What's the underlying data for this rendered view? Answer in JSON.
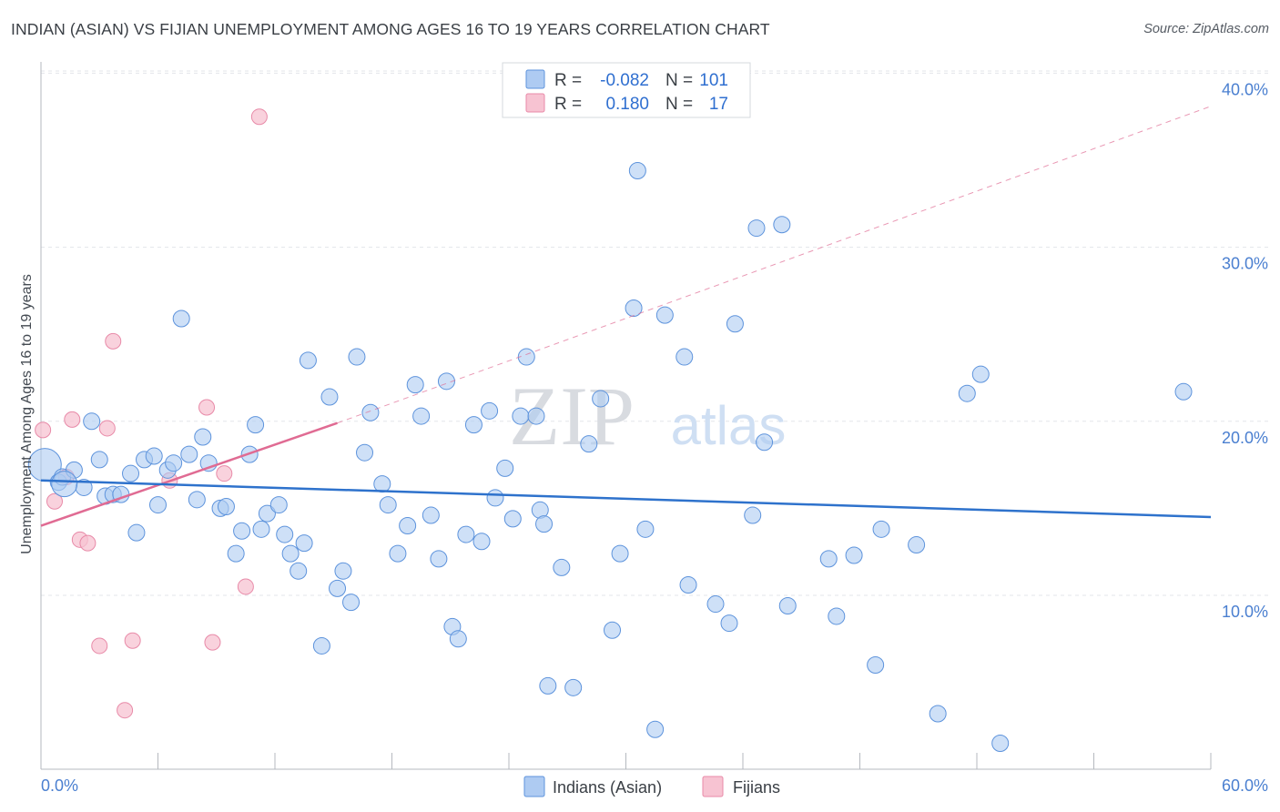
{
  "title": "INDIAN (ASIAN) VS FIJIAN UNEMPLOYMENT AMONG AGES 16 TO 19 YEARS CORRELATION CHART",
  "source": "Source: ZipAtlas.com",
  "watermark": {
    "zip": "ZIP",
    "atlas": "atlas"
  },
  "legend": {
    "rows": [
      {
        "r_label": "R =",
        "r_value": "-0.082",
        "n_label": "N =",
        "n_value": "101"
      },
      {
        "r_label": "R =",
        "r_value": "0.180",
        "n_label": "N =",
        "n_value": "17"
      }
    ]
  },
  "bottom_legend": [
    "Indians (Asian)",
    "Fijians"
  ],
  "colors": {
    "indian_fill": "#aecbf2",
    "indian_stroke": "#5d93dc",
    "indian_line": "#2e72cc",
    "fijian_fill": "#f7c3d2",
    "fijian_stroke": "#e88aa8",
    "fijian_line": "#e06b93",
    "axis_text": "#4a7fd0",
    "grid": "#e3e5ea"
  },
  "chart_data": {
    "type": "scatter",
    "title": "INDIAN (ASIAN) VS FIJIAN UNEMPLOYMENT AMONG AGES 16 TO 19 YEARS CORRELATION CHART",
    "xlabel": "",
    "ylabel": "Unemployment Among Ages 16 to 19 years",
    "xlim": [
      0,
      60
    ],
    "ylim": [
      0,
      41
    ],
    "x_tick_labels": [
      "0.0%",
      "60.0%"
    ],
    "y_ticks": [
      10,
      20,
      30,
      40
    ],
    "y_tick_labels": [
      "10.0%",
      "20.0%",
      "30.0%",
      "40.0%"
    ],
    "grid": true,
    "legend_position": "top-center",
    "series": [
      {
        "name": "Indians (Asian)",
        "points": [
          [
            0.2,
            17.5
          ],
          [
            0.9,
            16.5
          ],
          [
            1.1,
            16.8
          ],
          [
            1.7,
            17.2
          ],
          [
            2.2,
            16.2
          ],
          [
            2.6,
            20.0
          ],
          [
            3.0,
            17.8
          ],
          [
            3.3,
            15.7
          ],
          [
            3.7,
            15.8
          ],
          [
            4.1,
            15.8
          ],
          [
            4.6,
            17.0
          ],
          [
            4.9,
            13.6
          ],
          [
            5.3,
            17.8
          ],
          [
            5.8,
            18.0
          ],
          [
            6.0,
            15.2
          ],
          [
            6.5,
            17.2
          ],
          [
            6.8,
            17.6
          ],
          [
            7.2,
            25.9
          ],
          [
            7.6,
            18.1
          ],
          [
            8.0,
            15.5
          ],
          [
            8.3,
            19.1
          ],
          [
            8.6,
            17.6
          ],
          [
            9.2,
            15.0
          ],
          [
            9.5,
            15.1
          ],
          [
            10.0,
            12.4
          ],
          [
            10.3,
            13.7
          ],
          [
            10.7,
            18.1
          ],
          [
            11.0,
            19.8
          ],
          [
            11.3,
            13.8
          ],
          [
            11.6,
            14.7
          ],
          [
            12.2,
            15.2
          ],
          [
            12.5,
            13.5
          ],
          [
            12.8,
            12.4
          ],
          [
            13.2,
            11.4
          ],
          [
            13.5,
            13.0
          ],
          [
            13.7,
            23.5
          ],
          [
            14.4,
            7.1
          ],
          [
            14.8,
            21.4
          ],
          [
            15.2,
            10.4
          ],
          [
            15.5,
            11.4
          ],
          [
            15.9,
            9.6
          ],
          [
            16.2,
            23.7
          ],
          [
            16.6,
            18.2
          ],
          [
            16.9,
            20.5
          ],
          [
            17.5,
            16.4
          ],
          [
            17.8,
            15.2
          ],
          [
            18.3,
            12.4
          ],
          [
            18.8,
            14.0
          ],
          [
            19.2,
            22.1
          ],
          [
            19.5,
            20.3
          ],
          [
            20.0,
            14.6
          ],
          [
            20.4,
            12.1
          ],
          [
            20.8,
            22.3
          ],
          [
            21.1,
            8.2
          ],
          [
            21.4,
            7.5
          ],
          [
            21.8,
            13.5
          ],
          [
            22.2,
            19.8
          ],
          [
            22.6,
            13.1
          ],
          [
            23.0,
            20.6
          ],
          [
            23.3,
            15.6
          ],
          [
            23.8,
            17.3
          ],
          [
            24.2,
            14.4
          ],
          [
            24.6,
            20.3
          ],
          [
            24.9,
            23.7
          ],
          [
            25.4,
            20.3
          ],
          [
            25.6,
            14.9
          ],
          [
            25.8,
            14.1
          ],
          [
            26.0,
            4.8
          ],
          [
            26.7,
            11.6
          ],
          [
            27.3,
            4.7
          ],
          [
            28.1,
            18.7
          ],
          [
            28.7,
            21.3
          ],
          [
            29.3,
            8.0
          ],
          [
            29.7,
            12.4
          ],
          [
            30.4,
            26.5
          ],
          [
            30.6,
            34.4
          ],
          [
            31.0,
            13.8
          ],
          [
            31.5,
            2.3
          ],
          [
            32.0,
            26.1
          ],
          [
            33.0,
            23.7
          ],
          [
            33.2,
            10.6
          ],
          [
            34.6,
            9.5
          ],
          [
            35.3,
            8.4
          ],
          [
            35.6,
            25.6
          ],
          [
            36.5,
            14.6
          ],
          [
            36.7,
            31.1
          ],
          [
            37.1,
            18.8
          ],
          [
            38.0,
            31.3
          ],
          [
            38.3,
            9.4
          ],
          [
            40.4,
            12.1
          ],
          [
            40.8,
            8.8
          ],
          [
            41.7,
            12.3
          ],
          [
            42.8,
            6.0
          ],
          [
            43.1,
            13.8
          ],
          [
            44.9,
            12.9
          ],
          [
            46.0,
            3.2
          ],
          [
            47.5,
            21.6
          ],
          [
            48.2,
            22.7
          ],
          [
            49.2,
            1.5
          ],
          [
            58.6,
            21.7
          ],
          [
            1.2,
            16.4
          ]
        ],
        "trend": {
          "x": [
            0,
            60
          ],
          "y": [
            16.6,
            14.5
          ]
        }
      },
      {
        "name": "Fijians",
        "points": [
          [
            0.1,
            19.5
          ],
          [
            0.7,
            15.4
          ],
          [
            1.6,
            20.1
          ],
          [
            2.0,
            13.2
          ],
          [
            2.4,
            13.0
          ],
          [
            3.0,
            7.1
          ],
          [
            3.4,
            19.6
          ],
          [
            3.7,
            24.6
          ],
          [
            4.3,
            3.4
          ],
          [
            4.7,
            7.4
          ],
          [
            6.6,
            16.6
          ],
          [
            8.5,
            20.8
          ],
          [
            8.8,
            7.3
          ],
          [
            9.4,
            17.0
          ],
          [
            10.5,
            10.5
          ],
          [
            11.2,
            37.5
          ],
          [
            1.3,
            16.8
          ]
        ],
        "trend": {
          "x": [
            0,
            15.2
          ],
          "y": [
            14.0,
            19.9
          ]
        },
        "trend_extension": {
          "x": [
            15.2,
            60
          ],
          "y": [
            19.9,
            38.1
          ]
        }
      }
    ]
  }
}
